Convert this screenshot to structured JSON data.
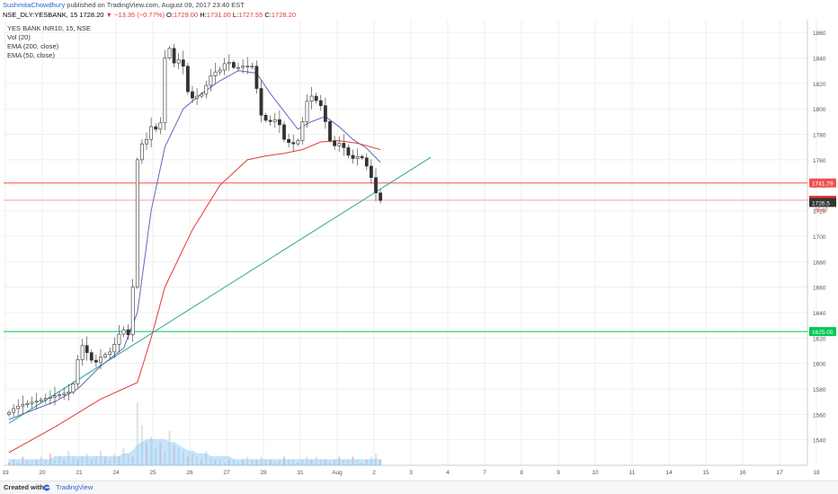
{
  "header": {
    "author": "SushmitaChowdhury",
    "published": "published on TradingView.com, August 09, 2017 23:40 EST",
    "symbol": "NSE_DLY:YESBANK, 15",
    "last": "1728.20",
    "change": "▼ −13.35 (−0.77%)",
    "o_label": "O:",
    "o": "1729.00",
    "h_label": "H:",
    "h": "1731.00",
    "l_label": "L:",
    "l": "1727.55",
    "c_label": "C:",
    "c": "1728.20"
  },
  "legend": {
    "line1": "YES BANK INR10, 15, NSE",
    "line2": "Vol (20)",
    "line3": "EMA (200, close)",
    "line4": "EMA (50, close)"
  },
  "footer": {
    "created": "Created with",
    "brand": "TradingView"
  },
  "colors": {
    "up": "#555555",
    "down": "#222222",
    "ema200": "#e53935",
    "ema50": "#5c6bc0",
    "trend": "#26a69a",
    "resistance": "#ef5350",
    "support": "#00c853",
    "volume": "#90caf9",
    "grid": "#efefef"
  },
  "chart_data": {
    "type": "candlestick",
    "ylim": [
      1520,
      1870
    ],
    "price_ticks": [
      1540,
      1560,
      1580,
      1600,
      1620,
      1640,
      1660,
      1680,
      1700,
      1720,
      1740,
      1760,
      1780,
      1800,
      1820,
      1840,
      1860
    ],
    "x_ticks": [
      "19",
      "20",
      "21",
      "24",
      "25",
      "26",
      "27",
      "28",
      "31",
      "Aug",
      "2",
      "3",
      "4",
      "7",
      "8",
      "9",
      "10",
      "11",
      "14",
      "15",
      "16",
      "17",
      "18"
    ],
    "price_labels": [
      {
        "value": 1741.79,
        "text": "1741.79",
        "color": "#ef5350"
      },
      {
        "value": 1728.2,
        "text": "1728.20",
        "color": "#e53935"
      },
      {
        "value": 1726.5,
        "text": "1726.5",
        "color": "#333333"
      },
      {
        "value": 1625.05,
        "text": "1625.05",
        "color": "#00c853"
      }
    ],
    "countdown": "05:07",
    "close_path": [
      [
        0,
        1560
      ],
      [
        2,
        1566
      ],
      [
        4,
        1568
      ],
      [
        6,
        1570
      ],
      [
        8,
        1572
      ],
      [
        10,
        1574
      ],
      [
        12,
        1576
      ],
      [
        14,
        1578
      ],
      [
        15,
        1590
      ],
      [
        16,
        1616
      ],
      [
        17,
        1612
      ],
      [
        18,
        1605
      ],
      [
        19,
        1600
      ],
      [
        20,
        1602
      ],
      [
        21,
        1608
      ],
      [
        22,
        1606
      ],
      [
        23,
        1612
      ],
      [
        24,
        1618
      ],
      [
        25,
        1628
      ],
      [
        26,
        1625
      ],
      [
        27,
        1620
      ],
      [
        27.5,
        1660
      ],
      [
        28,
        1710
      ],
      [
        28.5,
        1760
      ],
      [
        29,
        1775
      ],
      [
        30,
        1770
      ],
      [
        31,
        1782
      ],
      [
        32,
        1790
      ],
      [
        33,
        1778
      ],
      [
        34,
        1800
      ],
      [
        34.5,
        1840
      ],
      [
        35,
        1855
      ],
      [
        36,
        1840
      ],
      [
        37,
        1832
      ],
      [
        38,
        1845
      ],
      [
        39,
        1822
      ],
      [
        40,
        1805
      ],
      [
        41,
        1812
      ],
      [
        42,
        1808
      ],
      [
        43,
        1815
      ],
      [
        44,
        1822
      ],
      [
        45,
        1830
      ],
      [
        46,
        1828
      ],
      [
        47,
        1833
      ],
      [
        48,
        1838
      ],
      [
        49,
        1835
      ],
      [
        50,
        1830
      ],
      [
        51,
        1835
      ],
      [
        52,
        1832
      ],
      [
        53,
        1835
      ],
      [
        54,
        1832
      ],
      [
        55,
        1800
      ],
      [
        56,
        1790
      ],
      [
        57,
        1792
      ],
      [
        58,
        1788
      ],
      [
        59,
        1795
      ],
      [
        60,
        1780
      ],
      [
        61,
        1772
      ],
      [
        62,
        1775
      ],
      [
        63,
        1770
      ],
      [
        64,
        1780
      ],
      [
        65,
        1800
      ],
      [
        66,
        1812
      ],
      [
        67,
        1808
      ],
      [
        68,
        1805
      ],
      [
        69,
        1800
      ],
      [
        70,
        1780
      ],
      [
        71,
        1770
      ],
      [
        72,
        1772
      ],
      [
        73,
        1774
      ],
      [
        74,
        1765
      ],
      [
        75,
        1762
      ],
      [
        76,
        1760
      ],
      [
        77,
        1765
      ],
      [
        78,
        1758
      ],
      [
        79,
        1752
      ],
      [
        80,
        1740
      ],
      [
        81,
        1728
      ]
    ],
    "ema50": [
      [
        0,
        1556
      ],
      [
        10,
        1570
      ],
      [
        15,
        1580
      ],
      [
        20,
        1598
      ],
      [
        25,
        1612
      ],
      [
        28,
        1640
      ],
      [
        31,
        1720
      ],
      [
        34,
        1770
      ],
      [
        38,
        1800
      ],
      [
        42,
        1812
      ],
      [
        46,
        1822
      ],
      [
        50,
        1830
      ],
      [
        54,
        1828
      ],
      [
        57,
        1812
      ],
      [
        60,
        1798
      ],
      [
        63,
        1784
      ],
      [
        66,
        1790
      ],
      [
        69,
        1794
      ],
      [
        72,
        1786
      ],
      [
        75,
        1776
      ],
      [
        78,
        1769
      ],
      [
        81,
        1758
      ]
    ],
    "ema200": [
      [
        0,
        1530
      ],
      [
        10,
        1550
      ],
      [
        20,
        1572
      ],
      [
        28,
        1585
      ],
      [
        31,
        1620
      ],
      [
        34,
        1660
      ],
      [
        40,
        1705
      ],
      [
        46,
        1740
      ],
      [
        52,
        1760
      ],
      [
        56,
        1763
      ],
      [
        60,
        1765
      ],
      [
        64,
        1768
      ],
      [
        68,
        1774
      ],
      [
        72,
        1775
      ],
      [
        76,
        1773
      ],
      [
        81,
        1768
      ]
    ],
    "trendline": [
      [
        0,
        1553
      ],
      [
        92,
        1762
      ]
    ],
    "resistance": 1741.79,
    "support": 1625.05,
    "volume": [
      1,
      2,
      1,
      3,
      2,
      1,
      2,
      3,
      2,
      4,
      2,
      3,
      2,
      5,
      3,
      2,
      3,
      4,
      2,
      3,
      5,
      3,
      2,
      4,
      3,
      6,
      4,
      3,
      22,
      14,
      8,
      10,
      6,
      8,
      5,
      12,
      7,
      6,
      5,
      3,
      4,
      3,
      2,
      5,
      3,
      2,
      2,
      1,
      2,
      2,
      1,
      2,
      3,
      2,
      2,
      3,
      2,
      2,
      1,
      2,
      3,
      2,
      2,
      1,
      2,
      3,
      2,
      3,
      2,
      2,
      1,
      2,
      3,
      2,
      2,
      3,
      2,
      1,
      2,
      3,
      4,
      2
    ],
    "volume_ma": [
      2,
      2,
      2,
      2,
      2,
      2,
      2,
      2,
      2,
      2,
      3,
      3,
      3,
      3,
      3,
      3,
      3,
      3,
      3,
      3,
      3,
      3,
      3,
      3,
      3,
      4,
      4,
      5,
      7,
      8,
      9,
      9,
      9,
      9,
      9,
      8,
      8,
      7,
      6,
      5,
      5,
      4,
      4,
      4,
      3,
      3,
      3,
      3,
      3,
      2,
      2,
      2,
      2,
      2,
      2,
      2,
      2,
      2,
      2,
      2,
      2,
      2,
      2,
      2,
      2,
      2,
      2,
      2,
      2,
      2,
      2,
      2,
      2,
      2,
      2,
      2,
      2,
      2,
      2,
      2,
      2,
      2
    ]
  }
}
